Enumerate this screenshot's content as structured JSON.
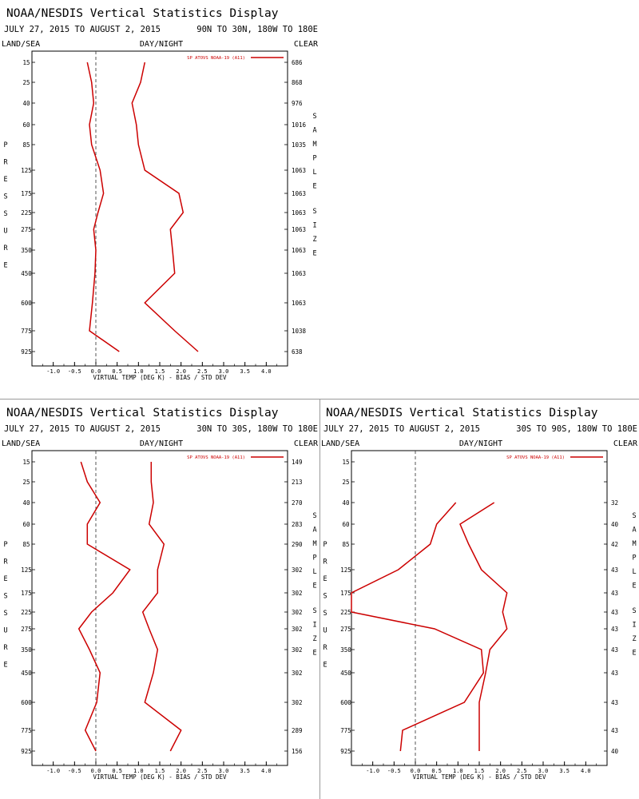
{
  "colors": {
    "series": "#cc0000",
    "axis": "#000000",
    "zero_line": "#444444"
  },
  "chart_data": [
    {
      "type": "line",
      "title": "NOAA/NESDIS Vertical Statistics Display",
      "date_range": "JULY 27, 2015 TO AUGUST 2, 2015",
      "region": "90N TO 30N, 180W TO 180E",
      "left_label": "LAND/SEA",
      "center_label": "DAY/NIGHT",
      "right_label": "CLEAR",
      "ylabel": "PRESSURE",
      "y2label": "SAMPLE SIZE",
      "xlabel": "VIRTUAL TEMP (DEG K) - BIAS / STD DEV",
      "xlim": [
        -1.5,
        4.5
      ],
      "x_ticks": [
        "-1.0",
        "-0.5",
        "0.0",
        "0.5",
        "1.0",
        "1.5",
        "2.0",
        "2.5",
        "3.0",
        "3.5",
        "4.0"
      ],
      "pressure_levels": [
        "15",
        "25",
        "40",
        "60",
        "85",
        "125",
        "175",
        "225",
        "275",
        "350",
        "450",
        "600",
        "775",
        "925"
      ],
      "sample_size": [
        "686",
        "868",
        "976",
        "1016",
        "1035",
        "1063",
        "1063",
        "1063",
        "1063",
        "1063",
        "1063",
        "1063",
        "1038",
        "638"
      ],
      "legend": "SP ATOVS NOAA-19 (A11)",
      "legend_position": "top-right",
      "series": [
        {
          "name": "bias",
          "values": [
            -0.2,
            -0.1,
            -0.05,
            -0.15,
            -0.1,
            0.1,
            0.18,
            0.05,
            -0.05,
            0.0,
            -0.02,
            -0.08,
            -0.15,
            0.55
          ]
        },
        {
          "name": "std_dev",
          "values": [
            1.15,
            1.05,
            0.85,
            0.95,
            1.0,
            1.15,
            1.95,
            2.05,
            1.75,
            1.8,
            1.85,
            1.15,
            1.85,
            2.4
          ]
        }
      ]
    },
    {
      "type": "line",
      "title": "NOAA/NESDIS Vertical Statistics Display",
      "date_range": "JULY 27, 2015 TO AUGUST 2, 2015",
      "region": "30N TO 30S, 180W TO 180E",
      "left_label": "LAND/SEA",
      "center_label": "DAY/NIGHT",
      "right_label": "CLEAR",
      "ylabel": "PRESSURE",
      "y2label": "SAMPLE SIZE",
      "xlabel": "VIRTUAL TEMP (DEG K) - BIAS / STD DEV",
      "xlim": [
        -1.5,
        4.5
      ],
      "x_ticks": [
        "-1.0",
        "-0.5",
        "0.0",
        "0.5",
        "1.0",
        "1.5",
        "2.0",
        "2.5",
        "3.0",
        "3.5",
        "4.0"
      ],
      "pressure_levels": [
        "15",
        "25",
        "40",
        "60",
        "85",
        "125",
        "175",
        "225",
        "275",
        "350",
        "450",
        "600",
        "775",
        "925"
      ],
      "sample_size": [
        "149",
        "213",
        "270",
        "283",
        "290",
        "302",
        "302",
        "302",
        "302",
        "302",
        "302",
        "302",
        "289",
        "156"
      ],
      "legend": "SP ATOVS NOAA-19 (A11)",
      "legend_position": "top-right",
      "series": [
        {
          "name": "bias",
          "values": [
            -0.35,
            -0.2,
            0.1,
            -0.2,
            -0.2,
            0.8,
            0.4,
            -0.1,
            -0.4,
            -0.15,
            0.1,
            0.02,
            -0.25,
            0.0
          ]
        },
        {
          "name": "std_dev",
          "values": [
            1.3,
            1.3,
            1.35,
            1.25,
            1.6,
            1.45,
            1.45,
            1.1,
            1.25,
            1.45,
            1.35,
            1.15,
            2.0,
            1.75
          ]
        }
      ]
    },
    {
      "type": "line",
      "title": "NOAA/NESDIS Vertical Statistics Display",
      "date_range": "JULY 27, 2015 TO AUGUST 2, 2015",
      "region": "30S TO 90S, 180W TO 180E",
      "left_label": "LAND/SEA",
      "center_label": "DAY/NIGHT",
      "right_label": "CLEAR",
      "ylabel": "PRESSURE",
      "y2label": "SAMPLE SIZE",
      "xlabel": "VIRTUAL TEMP (DEG K) - BIAS / STD DEV",
      "xlim": [
        -1.5,
        4.5
      ],
      "x_ticks": [
        "-1.0",
        "-0.5",
        "0.0",
        "0.5",
        "1.0",
        "1.5",
        "2.0",
        "2.5",
        "3.0",
        "3.5",
        "4.0"
      ],
      "pressure_levels": [
        "15",
        "25",
        "40",
        "60",
        "85",
        "125",
        "175",
        "225",
        "275",
        "350",
        "450",
        "600",
        "775",
        "925"
      ],
      "sample_size": [
        "",
        "",
        "32",
        "40",
        "42",
        "43",
        "43",
        "43",
        "43",
        "43",
        "43",
        "43",
        "43",
        "40"
      ],
      "legend": "SP ATOVS NOAA-19 (A11)",
      "legend_position": "top-right",
      "series": [
        {
          "name": "bias",
          "values": [
            null,
            null,
            0.95,
            0.5,
            0.35,
            -0.4,
            -1.5,
            -1.5,
            0.45,
            1.55,
            1.6,
            1.15,
            -0.3,
            -0.35
          ]
        },
        {
          "name": "std_dev",
          "values": [
            null,
            null,
            1.85,
            1.05,
            1.25,
            1.55,
            2.15,
            2.05,
            2.15,
            1.75,
            1.65,
            1.5,
            1.5,
            1.5
          ]
        }
      ]
    }
  ]
}
